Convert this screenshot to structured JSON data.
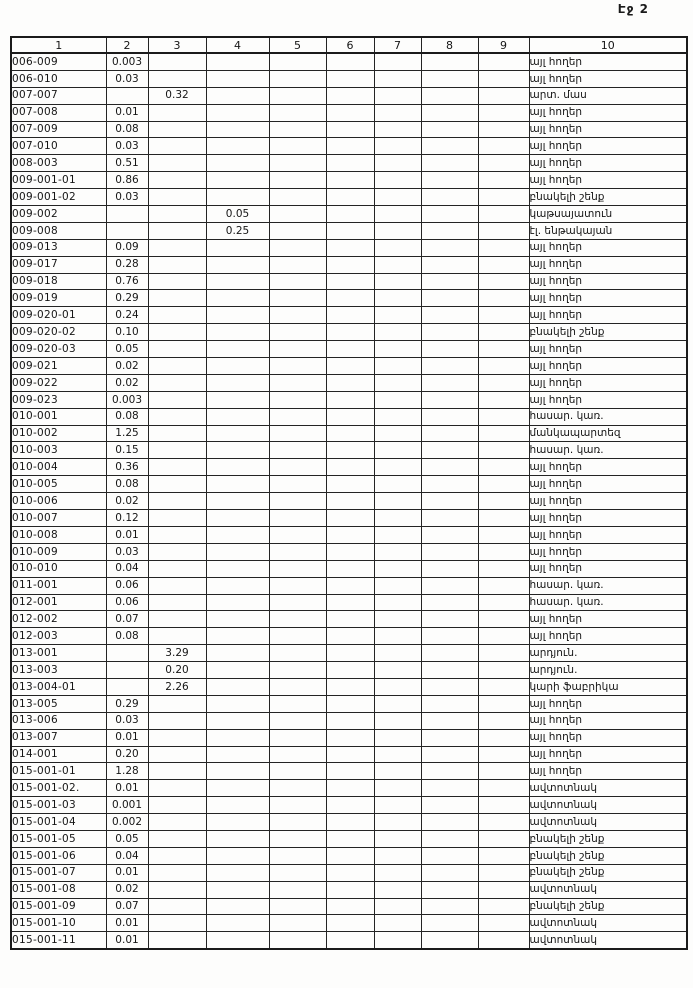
{
  "page": {
    "label": "Էջ 2"
  },
  "table": {
    "headers": [
      "1",
      "2",
      "3",
      "4",
      "5",
      "6",
      "7",
      "8",
      "9",
      "10"
    ],
    "rows": [
      [
        "006-009",
        "0.003",
        "",
        "",
        "",
        "",
        "",
        "",
        "",
        "այլ հողեր"
      ],
      [
        "006-010",
        "0.03",
        "",
        "",
        "",
        "",
        "",
        "",
        "",
        "այլ հողեր"
      ],
      [
        "007-007",
        "",
        "0.32",
        "",
        "",
        "",
        "",
        "",
        "",
        "արտ. մաս"
      ],
      [
        "007-008",
        "0.01",
        "",
        "",
        "",
        "",
        "",
        "",
        "",
        "այլ հողեր"
      ],
      [
        "007-009",
        "0.08",
        "",
        "",
        "",
        "",
        "",
        "",
        "",
        "այլ հողեր"
      ],
      [
        "007-010",
        "0.03",
        "",
        "",
        "",
        "",
        "",
        "",
        "",
        "այլ հողեր"
      ],
      [
        "008-003",
        "0.51",
        "",
        "",
        "",
        "",
        "",
        "",
        "",
        "այլ հողեր"
      ],
      [
        "009-001-01",
        "0.86",
        "",
        "",
        "",
        "",
        "",
        "",
        "",
        "այլ հողեր"
      ],
      [
        "009-001-02",
        "0.03",
        "",
        "",
        "",
        "",
        "",
        "",
        "",
        "բնակելի շենք"
      ],
      [
        "009-002",
        "",
        "",
        "0.05",
        "",
        "",
        "",
        "",
        "",
        "կաթսայատուն"
      ],
      [
        "009-008",
        "",
        "",
        "0.25",
        "",
        "",
        "",
        "",
        "",
        "էլ. ենթակայան"
      ],
      [
        "009-013",
        "0.09",
        "",
        "",
        "",
        "",
        "",
        "",
        "",
        "այլ հողեր"
      ],
      [
        "009-017",
        "0.28",
        "",
        "",
        "",
        "",
        "",
        "",
        "",
        "այլ հողեր"
      ],
      [
        "009-018",
        "0.76",
        "",
        "",
        "",
        "",
        "",
        "",
        "",
        "այլ հողեր"
      ],
      [
        "009-019",
        "0.29",
        "",
        "",
        "",
        "",
        "",
        "",
        "",
        "այլ հողեր"
      ],
      [
        "009-020-01",
        "0.24",
        "",
        "",
        "",
        "",
        "",
        "",
        "",
        "այլ հողեր"
      ],
      [
        "009-020-02",
        "0.10",
        "",
        "",
        "",
        "",
        "",
        "",
        "",
        "բնակելի շենք"
      ],
      [
        "009-020-03",
        "0.05",
        "",
        "",
        "",
        "",
        "",
        "",
        "",
        "այլ հողեր"
      ],
      [
        "009-021",
        "0.02",
        "",
        "",
        "",
        "",
        "",
        "",
        "",
        "այլ հողեր"
      ],
      [
        "009-022",
        "0.02",
        "",
        "",
        "",
        "",
        "",
        "",
        "",
        "այլ հողեր"
      ],
      [
        "009-023",
        "0.003",
        "",
        "",
        "",
        "",
        "",
        "",
        "",
        "այլ հողեր"
      ],
      [
        "010-001",
        "0.08",
        "",
        "",
        "",
        "",
        "",
        "",
        "",
        "հասար. կառ."
      ],
      [
        "010-002",
        "1.25",
        "",
        "",
        "",
        "",
        "",
        "",
        "",
        "մանկապարտեզ"
      ],
      [
        "010-003",
        "0.15",
        "",
        "",
        "",
        "",
        "",
        "",
        "",
        "հասար. կառ."
      ],
      [
        "010-004",
        "0.36",
        "",
        "",
        "",
        "",
        "",
        "",
        "",
        "այլ հողեր"
      ],
      [
        "010-005",
        "0.08",
        "",
        "",
        "",
        "",
        "",
        "",
        "",
        "այլ հողեր"
      ],
      [
        "010-006",
        "0.02",
        "",
        "",
        "",
        "",
        "",
        "",
        "",
        "այլ հողեր"
      ],
      [
        "010-007",
        "0.12",
        "",
        "",
        "",
        "",
        "",
        "",
        "",
        "այլ հողեր"
      ],
      [
        "010-008",
        "0.01",
        "",
        "",
        "",
        "",
        "",
        "",
        "",
        "այլ հողեր"
      ],
      [
        "010-009",
        "0.03",
        "",
        "",
        "",
        "",
        "",
        "",
        "",
        "այլ հողեր"
      ],
      [
        "010-010",
        "0.04",
        "",
        "",
        "",
        "",
        "",
        "",
        "",
        "այլ հողեր"
      ],
      [
        "011-001",
        "0.06",
        "",
        "",
        "",
        "",
        "",
        "",
        "",
        "հասար. կառ."
      ],
      [
        "012-001",
        "0.06",
        "",
        "",
        "",
        "",
        "",
        "",
        "",
        "հասար. կառ."
      ],
      [
        "012-002",
        "0.07",
        "",
        "",
        "",
        "",
        "",
        "",
        "",
        "այլ հողեր"
      ],
      [
        "012-003",
        "0.08",
        "",
        "",
        "",
        "",
        "",
        "",
        "",
        "այլ հողեր"
      ],
      [
        "013-001",
        "",
        "3.29",
        "",
        "",
        "",
        "",
        "",
        "",
        "արդյուն."
      ],
      [
        "013-003",
        "",
        "0.20",
        "",
        "",
        "",
        "",
        "",
        "",
        "արդյուն."
      ],
      [
        "013-004-01",
        "",
        "2.26",
        "",
        "",
        "",
        "",
        "",
        "",
        "կարի ֆաբրիկա"
      ],
      [
        "013-005",
        "0.29",
        "",
        "",
        "",
        "",
        "",
        "",
        "",
        "այլ հողեր"
      ],
      [
        "013-006",
        "0.03",
        "",
        "",
        "",
        "",
        "",
        "",
        "",
        "այլ հողեր"
      ],
      [
        "013-007",
        "0.01",
        "",
        "",
        "",
        "",
        "",
        "",
        "",
        "այլ հողեր"
      ],
      [
        "014-001",
        "0.20",
        "",
        "",
        "",
        "",
        "",
        "",
        "",
        "այլ հողեր"
      ],
      [
        "015-001-01",
        "1.28",
        "",
        "",
        "",
        "",
        "",
        "",
        "",
        "այլ հողեր"
      ],
      [
        "015-001-02.",
        "0.01",
        "",
        "",
        "",
        "",
        "",
        "",
        "",
        "ավտոտնակ"
      ],
      [
        "015-001-03",
        "0.001",
        "",
        "",
        "",
        "",
        "",
        "",
        "",
        "ավտոտնակ"
      ],
      [
        "015-001-04",
        "0.002",
        "",
        "",
        "",
        "",
        "",
        "",
        "",
        "ավտոտնակ"
      ],
      [
        "015-001-05",
        "0.05",
        "",
        "",
        "",
        "",
        "",
        "",
        "",
        "բնակելի շենք"
      ],
      [
        "015-001-06",
        "0.04",
        "",
        "",
        "",
        "",
        "",
        "",
        "",
        "բնակելի շենք"
      ],
      [
        "015-001-07",
        "0.01",
        "",
        "",
        "",
        "",
        "",
        "",
        "",
        "բնակելի շենք"
      ],
      [
        "015-001-08",
        "0.02",
        "",
        "",
        "",
        "",
        "",
        "",
        "",
        "ավտոտնակ"
      ],
      [
        "015-001-09",
        "0.07",
        "",
        "",
        "",
        "",
        "",
        "",
        "",
        "բնակելի շենք"
      ],
      [
        "015-001-10",
        "0.01",
        "",
        "",
        "",
        "",
        "",
        "",
        "",
        "ավտոտնակ"
      ],
      [
        "015-001-11",
        "0.01",
        "",
        "",
        "",
        "",
        "",
        "",
        "",
        "ավտոտնակ"
      ]
    ]
  }
}
